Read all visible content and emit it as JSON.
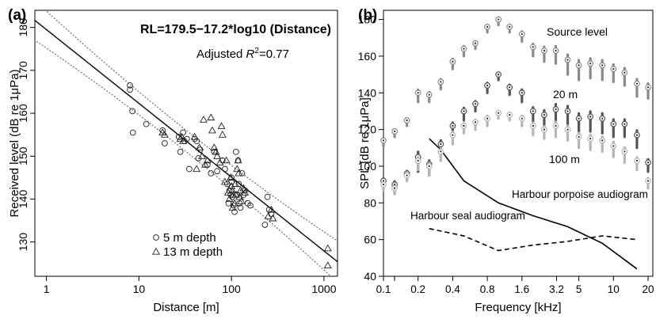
{
  "chart_data": [
    {
      "type": "scatter",
      "panel_label": "(a)",
      "equation": "RL=179.5−17.2*log10 (Distance)",
      "r2_prefix": "Adjusted ",
      "r2_symbol": "R",
      "r2_sup": "2",
      "r2_value": "=0.77",
      "xlabel": "Distance [m]",
      "ylabel": "Received level (dB re 1μPa)",
      "x_scale": "log",
      "xlim": [
        0.75,
        1400
      ],
      "ylim": [
        122,
        184
      ],
      "x_ticks": [
        1,
        10,
        100,
        1000
      ],
      "x_tick_labels": [
        "1",
        "10",
        "100",
        "1000"
      ],
      "y_ticks": [
        130,
        140,
        150,
        160,
        170,
        180
      ],
      "y_tick_labels": [
        "130",
        "140",
        "150",
        "160",
        "170",
        "180"
      ],
      "grid": false,
      "legend_position": "bottom-center",
      "fit": {
        "intercept": 179.5,
        "slope": -17.2,
        "ci_halfwidth_at_ends": 5.0,
        "ci_halfwidth_at_mid": 2.5
      },
      "series": [
        {
          "name": "5 m depth",
          "marker": "circle",
          "points": [
            [
              8,
              166.5
            ],
            [
              8,
              165.5
            ],
            [
              8.5,
              160.5
            ],
            [
              8.6,
              155.5
            ],
            [
              12,
              157.5
            ],
            [
              18,
              156
            ],
            [
              19,
              153
            ],
            [
              27,
              154.5
            ],
            [
              28,
              151
            ],
            [
              30,
              155.5
            ],
            [
              31,
              153.5
            ],
            [
              33,
              154
            ],
            [
              35,
              147
            ],
            [
              40,
              154
            ],
            [
              42,
              153.5
            ],
            [
              44,
              149.5
            ],
            [
              46,
              151.5
            ],
            [
              55,
              148
            ],
            [
              60,
              146
            ],
            [
              65,
              151
            ],
            [
              70,
              146.5
            ],
            [
              80,
              149
            ],
            [
              85,
              147
            ],
            [
              90,
              143.5
            ],
            [
              93,
              139
            ],
            [
              95,
              142
            ],
            [
              98,
              141
            ],
            [
              100,
              144
            ],
            [
              100,
              145
            ],
            [
              102,
              140.5
            ],
            [
              105,
              138.5
            ],
            [
              108,
              137
            ],
            [
              112,
              151
            ],
            [
              115,
              141
            ],
            [
              118,
              149
            ],
            [
              120,
              143.5
            ],
            [
              122,
              139
            ],
            [
              125,
              138
            ],
            [
              130,
              146
            ],
            [
              135,
              141
            ],
            [
              140,
              142
            ],
            [
              150,
              139
            ],
            [
              160,
              138.5
            ],
            [
              245,
              140.5
            ],
            [
              255,
              137.5
            ],
            [
              270,
              136.5
            ],
            [
              230,
              134
            ]
          ]
        },
        {
          "name": "13 m depth",
          "marker": "triangle",
          "points": [
            [
              18,
              155.5
            ],
            [
              19,
              155
            ],
            [
              28,
              154
            ],
            [
              29,
              154.5
            ],
            [
              30,
              153.5
            ],
            [
              40,
              154.5
            ],
            [
              42,
              147
            ],
            [
              45,
              152
            ],
            [
              48,
              150
            ],
            [
              50,
              158.5
            ],
            [
              52,
              148
            ],
            [
              55,
              149
            ],
            [
              60,
              159
            ],
            [
              62,
              156
            ],
            [
              65,
              152
            ],
            [
              68,
              151
            ],
            [
              70,
              150
            ],
            [
              75,
              148.5
            ],
            [
              78,
              157
            ],
            [
              80,
              155
            ],
            [
              85,
              144
            ],
            [
              88,
              149
            ],
            [
              92,
              141.5
            ],
            [
              95,
              140
            ],
            [
              98,
              145
            ],
            [
              100,
              143
            ],
            [
              102,
              142
            ],
            [
              103,
              138
            ],
            [
              105,
              141
            ],
            [
              108,
              139
            ],
            [
              110,
              143.5
            ],
            [
              112,
              141
            ],
            [
              115,
              147
            ],
            [
              118,
              149
            ],
            [
              120,
              146
            ],
            [
              122,
              140.5
            ],
            [
              125,
              142
            ],
            [
              128,
              139.5
            ],
            [
              135,
              142.5
            ],
            [
              140,
              141.5
            ],
            [
              270,
              137.5
            ],
            [
              280,
              135.5
            ],
            [
              250,
              136
            ],
            [
              1100,
              128.5
            ],
            [
              1100,
              124.5
            ]
          ]
        }
      ]
    },
    {
      "type": "line",
      "panel_label": "(b)",
      "xlabel": "Frequency [kHz]",
      "ylabel": "SPL [dB re 1μPa]",
      "x_scale": "log",
      "xlim": [
        0.1,
        22
      ],
      "ylim": [
        40,
        185
      ],
      "x_ticks": [
        0.1,
        0.125,
        0.2,
        0.4,
        0.8,
        1.6,
        3.2,
        5,
        10,
        20
      ],
      "x_tick_labels": [
        "0.1",
        "",
        "0.2",
        "0.4",
        "0.8",
        "1.6",
        "3.2",
        "5",
        "10",
        "20"
      ],
      "y_ticks": [
        40,
        60,
        80,
        100,
        120,
        140,
        160,
        180
      ],
      "y_tick_labels": [
        "40",
        "60",
        "80",
        "100",
        "120",
        "140",
        "160",
        "180"
      ],
      "grid": false,
      "frequencies_khz": [
        0.1,
        0.125,
        0.16,
        0.2,
        0.25,
        0.315,
        0.4,
        0.5,
        0.63,
        0.8,
        1.0,
        1.25,
        1.6,
        2.0,
        2.5,
        3.15,
        4.0,
        5.0,
        6.3,
        8.0,
        10.0,
        12.5,
        16.0,
        20.0
      ],
      "series": [
        {
          "name": "Source level",
          "style": "points",
          "color": "#8a8a8a",
          "y": [
            114,
            119,
            125,
            140,
            139,
            146,
            157,
            164,
            167,
            176,
            180,
            176,
            172,
            165,
            163,
            163,
            158,
            155,
            156,
            155,
            153,
            151,
            145,
            143
          ],
          "spread": [
            3,
            3,
            3,
            5,
            4,
            4,
            4,
            4,
            3,
            3,
            3,
            3,
            4,
            5,
            6,
            7,
            8,
            8,
            8,
            8,
            7,
            7,
            7,
            6
          ]
        },
        {
          "name": "20 m",
          "style": "points",
          "color": "#555555",
          "y": [
            92,
            90,
            96,
            105,
            101,
            112,
            122,
            130,
            134,
            144,
            150,
            143,
            140,
            130,
            128,
            131,
            130,
            126,
            127,
            126,
            123,
            123,
            117,
            102
          ],
          "spread": [
            4,
            5,
            4,
            8,
            6,
            6,
            5,
            5,
            4,
            4,
            3,
            4,
            5,
            6,
            7,
            8,
            8,
            8,
            8,
            8,
            7,
            7,
            7,
            5
          ]
        },
        {
          "name": "100 m",
          "style": "points",
          "color": "#b5b5b5",
          "y": [
            90,
            88,
            95,
            103,
            100,
            108,
            117,
            122,
            124,
            126,
            129,
            128,
            126,
            122,
            120,
            122,
            120,
            116,
            115,
            114,
            111,
            108,
            103,
            92
          ],
          "spread": [
            3,
            3,
            3,
            5,
            5,
            5,
            5,
            4,
            4,
            4,
            3,
            3,
            4,
            5,
            5,
            6,
            6,
            6,
            6,
            6,
            6,
            6,
            5,
            4
          ]
        },
        {
          "name": "Harbour porpoise audiogram",
          "style": "solid",
          "color": "#000000",
          "x": [
            0.25,
            0.315,
            0.5,
            1.0,
            2.0,
            4.0,
            8.0,
            16.0
          ],
          "y": [
            115,
            109,
            92,
            80,
            73,
            67,
            58,
            44
          ]
        },
        {
          "name": "Harbour seal audiogram",
          "style": "dashed",
          "color": "#000000",
          "x": [
            0.25,
            0.5,
            1.0,
            2.0,
            4.0,
            8.0,
            16.0
          ],
          "y": [
            66,
            62,
            54,
            57,
            59,
            62,
            60
          ]
        }
      ]
    }
  ]
}
